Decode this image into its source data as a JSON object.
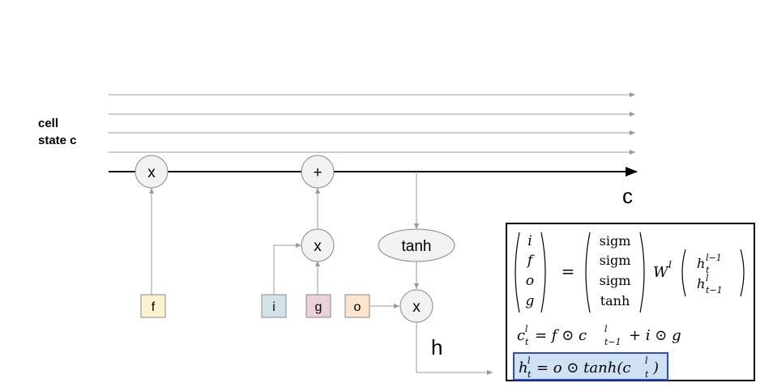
{
  "cell_state_label_line1": "cell",
  "cell_state_label_line2": "state c",
  "output_c_label": "c",
  "output_h_label": "h",
  "ops": {
    "forget_mult": "x",
    "add": "+",
    "input_mult": "x",
    "tanh": "tanh",
    "output_mult": "x"
  },
  "gates": {
    "f": "f",
    "i": "i",
    "g": "g",
    "o": "o"
  },
  "gate_colors": {
    "f": "#fdf2cf",
    "i": "#d2e3ea",
    "g": "#ead1dc",
    "o": "#fce5cd"
  },
  "colors": {
    "main_line": "#000000",
    "thin_line": "#999999",
    "node_fill": "#f2f2f2",
    "node_stroke": "#888888",
    "highlight_fill": "#cfe2f3",
    "highlight_stroke": "#2e4bd8"
  },
  "equations": {
    "gate_vector": [
      "i",
      "f",
      "o",
      "g"
    ],
    "equals": "=",
    "activations": [
      "sigm",
      "sigm",
      "sigm",
      "tanh"
    ],
    "weight": "W",
    "weight_sup": "l",
    "input_vector": [
      {
        "base": "h",
        "sub": "t",
        "sup": "l−1"
      },
      {
        "base": "h",
        "sub": "t−1",
        "sup": "l"
      }
    ],
    "cell_update": {
      "lhs": "c",
      "lhs_sub": "t",
      "lhs_sup": "l",
      "rhs_part1": "= f ⊙ c",
      "rhs_sub": "t−1",
      "rhs_sup": "l",
      "rhs_part2": "+ i ⊙ g"
    },
    "hidden_update": {
      "lhs": "h",
      "lhs_sub": "t",
      "lhs_sup": "l",
      "rhs_part1": "= o ⊙ tanh(c",
      "rhs_sub": "t",
      "rhs_sup": "l",
      "rhs_part2": ")"
    }
  }
}
